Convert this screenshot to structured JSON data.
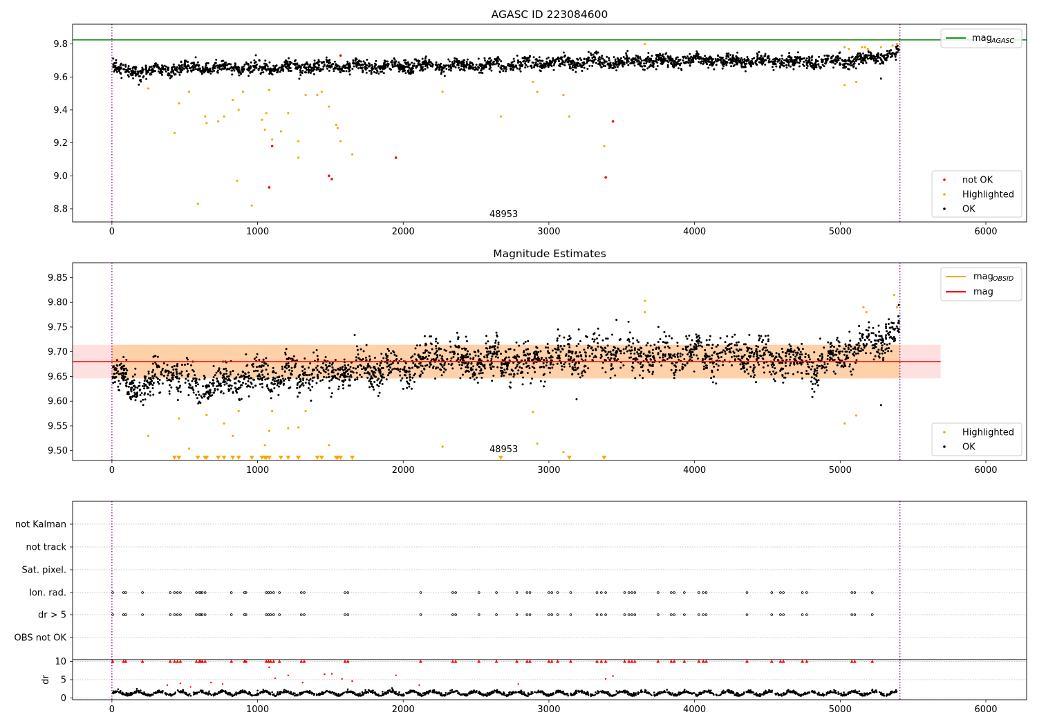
{
  "chart_data": [
    {
      "type": "scatter",
      "title": "AGASC ID 223084600",
      "xlabel": "",
      "ylabel": "",
      "xlim": [
        -270,
        6280
      ],
      "ylim": [
        8.72,
        9.92
      ],
      "xticks": [
        "0",
        "1000",
        "2000",
        "3000",
        "4000",
        "5000",
        "6000"
      ],
      "yticks": [
        "8.8",
        "9.0",
        "9.2",
        "9.4",
        "9.6",
        "9.8"
      ],
      "mag_agasc": 9.825,
      "vlines": [
        0,
        5410
      ],
      "annotation": {
        "text": "48953",
        "x": 2690,
        "y": 8.75
      },
      "ok_trend": {
        "x": [
          0,
          200,
          500,
          1000,
          1500,
          2000,
          2500,
          3000,
          3500,
          4000,
          4500,
          5000,
          5400
        ],
        "y": [
          9.655,
          9.63,
          9.655,
          9.655,
          9.66,
          9.665,
          9.67,
          9.685,
          9.695,
          9.7,
          9.695,
          9.69,
          9.74
        ]
      },
      "highlighted_points": {
        "x": [
          250,
          430,
          460,
          530,
          590,
          640,
          650,
          730,
          770,
          830,
          860,
          870,
          900,
          960,
          1030,
          1050,
          1060,
          1080,
          1100,
          1160,
          1210,
          1280,
          1280,
          1330,
          1410,
          1440,
          1490,
          1540,
          1550,
          1570,
          1650,
          2270,
          2670,
          2890,
          2920,
          3100,
          3140,
          3380,
          5030,
          5110,
          5030,
          5060,
          5150,
          5170,
          5190,
          5280,
          5360,
          5390,
          3660
        ],
        "y": [
          9.53,
          9.26,
          9.44,
          9.51,
          8.83,
          9.36,
          9.32,
          9.33,
          9.36,
          9.46,
          8.97,
          9.4,
          9.51,
          8.82,
          9.34,
          9.28,
          9.38,
          9.52,
          9.22,
          9.27,
          9.38,
          9.11,
          9.21,
          9.49,
          9.49,
          9.51,
          9.42,
          9.31,
          9.29,
          9.21,
          9.13,
          9.51,
          9.36,
          9.57,
          9.51,
          9.49,
          9.36,
          9.18,
          9.55,
          9.57,
          9.78,
          9.77,
          9.78,
          9.78,
          9.77,
          9.78,
          9.79,
          9.8,
          9.8
        ]
      },
      "not_ok_points": {
        "x": [
          1080,
          1100,
          1490,
          1510,
          1570,
          1950,
          3390,
          3440
        ],
        "y": [
          8.93,
          9.18,
          9.0,
          8.98,
          9.73,
          9.11,
          8.99,
          9.33
        ]
      },
      "legend_top": {
        "position": "top-right",
        "entries": [
          {
            "label": "mag",
            "sub": "AGASC",
            "color": "#008000"
          }
        ]
      },
      "legend_bottom": {
        "position": "bottom-right",
        "entries": [
          {
            "label": "not OK",
            "color": "#ff0000"
          },
          {
            "label": "Highlighted",
            "color": "#ffa500"
          },
          {
            "label": "OK",
            "color": "#000000"
          }
        ]
      }
    },
    {
      "type": "scatter",
      "title": "Magnitude Estimates",
      "xlabel": "",
      "ylabel": "",
      "xlim": [
        -270,
        6280
      ],
      "ylim": [
        9.48,
        9.88
      ],
      "xticks": [
        "0",
        "1000",
        "2000",
        "3000",
        "4000",
        "5000",
        "6000"
      ],
      "yticks": [
        "9.50",
        "9.55",
        "9.60",
        "9.65",
        "9.70",
        "9.75",
        "9.80",
        "9.85"
      ],
      "mag": 9.68,
      "mag_band": [
        9.646,
        9.714
      ],
      "mag_band_xmax": 5690,
      "vlines": [
        0,
        5410
      ],
      "annotation": {
        "text": "48953",
        "x": 2690,
        "y": 9.497
      },
      "ok_trend": {
        "x": [
          0,
          200,
          400,
          600,
          800,
          1000,
          1200,
          1400,
          1600,
          1800,
          2000,
          2200,
          2400,
          2600,
          2800,
          3000,
          3200,
          3400,
          3600,
          3800,
          4000,
          4200,
          4400,
          4600,
          4800,
          5000,
          5200,
          5400
        ],
        "y": [
          9.65,
          9.625,
          9.66,
          9.625,
          9.64,
          9.655,
          9.65,
          9.66,
          9.66,
          9.665,
          9.66,
          9.69,
          9.68,
          9.685,
          9.675,
          9.685,
          9.69,
          9.705,
          9.695,
          9.69,
          9.695,
          9.695,
          9.69,
          9.685,
          9.675,
          9.69,
          9.72,
          9.74
        ]
      },
      "highlighted_points": {
        "x": [
          250,
          460,
          530,
          650,
          770,
          830,
          870,
          1050,
          1080,
          1100,
          1210,
          1280,
          1330,
          1490,
          2270,
          2890,
          2920,
          3100,
          5030,
          5110,
          3660,
          3660,
          5160,
          5180,
          5370,
          5390
        ],
        "y": [
          9.53,
          9.565,
          9.504,
          9.572,
          9.555,
          9.53,
          9.58,
          9.511,
          9.54,
          9.58,
          9.545,
          9.547,
          9.58,
          9.511,
          9.508,
          9.578,
          9.514,
          9.497,
          9.555,
          9.571,
          9.803,
          9.78,
          9.79,
          9.78,
          9.815,
          9.79
        ]
      },
      "highlighted_below_axis_x": [
        430,
        460,
        590,
        640,
        650,
        730,
        770,
        830,
        870,
        960,
        1030,
        1050,
        1060,
        1080,
        1160,
        1210,
        1280,
        1280,
        1410,
        1440,
        1540,
        1550,
        1570,
        1650,
        2670,
        3140,
        3380
      ],
      "legend_top": {
        "position": "top-right",
        "entries": [
          {
            "label": "mag",
            "sub": "OBSID",
            "color": "#ffa500"
          },
          {
            "label": "mag",
            "color": "#ff0000"
          }
        ]
      },
      "legend_bottom": {
        "position": "bottom-right",
        "entries": [
          {
            "label": "Highlighted",
            "color": "#ffa500"
          },
          {
            "label": "OK",
            "color": "#000000"
          }
        ]
      }
    },
    {
      "type": "scatter",
      "title": "",
      "xlabel": "",
      "ylabel": "",
      "xlim": [
        -270,
        6280
      ],
      "flag_rows": [
        "not Kalman",
        "not track",
        "Sat. pixel.",
        "Ion. rad.",
        "dr > 5",
        "OBS not OK"
      ],
      "flag_x": [
        5,
        80,
        95,
        210,
        400,
        430,
        450,
        470,
        580,
        600,
        610,
        620,
        640,
        820,
        910,
        920,
        1060,
        1075,
        1090,
        1110,
        1150,
        1300,
        1320,
        1600,
        1620,
        2120,
        2340,
        2360,
        2520,
        2640,
        2780,
        2850,
        2870,
        3000,
        3020,
        3060,
        3150,
        3330,
        3360,
        3390,
        3520,
        3550,
        3570,
        3590,
        3750,
        3840,
        3860,
        3930,
        4030,
        4060,
        4080,
        4360,
        4530,
        4590,
        4610,
        4740,
        4770,
        5080,
        5100,
        5220
      ],
      "flag_rows_marked": [
        "Ion. rad.",
        "dr > 5"
      ],
      "dr_subplot": {
        "ylabel": "dr",
        "ylim": [
          -0.5,
          10.5
        ],
        "yticks": [
          "0",
          "5",
          "10"
        ],
        "xticks": [
          "0",
          "1000",
          "2000",
          "3000",
          "4000",
          "5000",
          "6000"
        ],
        "baseline_mean": 1.2,
        "red_points": {
          "x": [
            380,
            470,
            540,
            680,
            760,
            1080,
            1120,
            1210,
            1310,
            1460,
            1510,
            1580,
            1650,
            1950,
            2110,
            2790,
            3390,
            3440
          ],
          "y": [
            3.5,
            4.0,
            3.0,
            4.2,
            3.8,
            8.4,
            5.4,
            6.2,
            4.2,
            6.5,
            6.6,
            5.2,
            4.6,
            6.2,
            3.5,
            3.8,
            5.2,
            6.0
          ]
        }
      }
    }
  ]
}
